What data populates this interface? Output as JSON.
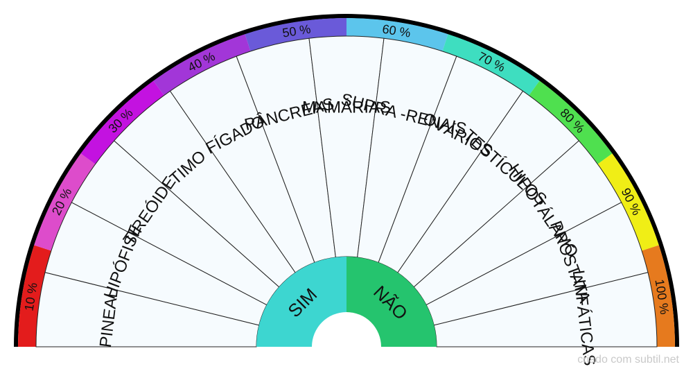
{
  "chart": {
    "percent_bands": [
      {
        "label": "10 %",
        "color": "#e31c1c"
      },
      {
        "label": "20 %",
        "color": "#dd4ccb"
      },
      {
        "label": "30 %",
        "color": "#c312e0"
      },
      {
        "label": "40 %",
        "color": "#a236d8"
      },
      {
        "label": "50 %",
        "color": "#6a5ad9"
      },
      {
        "label": "60 %",
        "color": "#5cc5ec"
      },
      {
        "label": "70 %",
        "color": "#3edec0"
      },
      {
        "label": "80 %",
        "color": "#4fe04f"
      },
      {
        "label": "90 %",
        "color": "#f0ee16"
      },
      {
        "label": "100 %",
        "color": "#e67a1e"
      }
    ],
    "glands": [
      "PINEAL",
      "HIPÓFISE",
      "TIREÓIDE",
      "TIMO",
      "FÍGADO",
      "PÂNCREAS",
      "MAMÁRIAS",
      "SUPRA -RENAIS",
      "OVÁRIOS",
      "TESTÍCULOS",
      "HIPOTÁLAMO",
      "PRÓSTATA",
      "LINFÁTICAS"
    ],
    "center": {
      "yes_label": "SIM",
      "yes_color": "#3dd6d0",
      "no_label": "NÃO",
      "no_color": "#25c46e"
    },
    "sector_fill": "#f6fbfe",
    "outer_rim_color": "#000000"
  },
  "footer": {
    "credit": "criado com subtil.net"
  }
}
